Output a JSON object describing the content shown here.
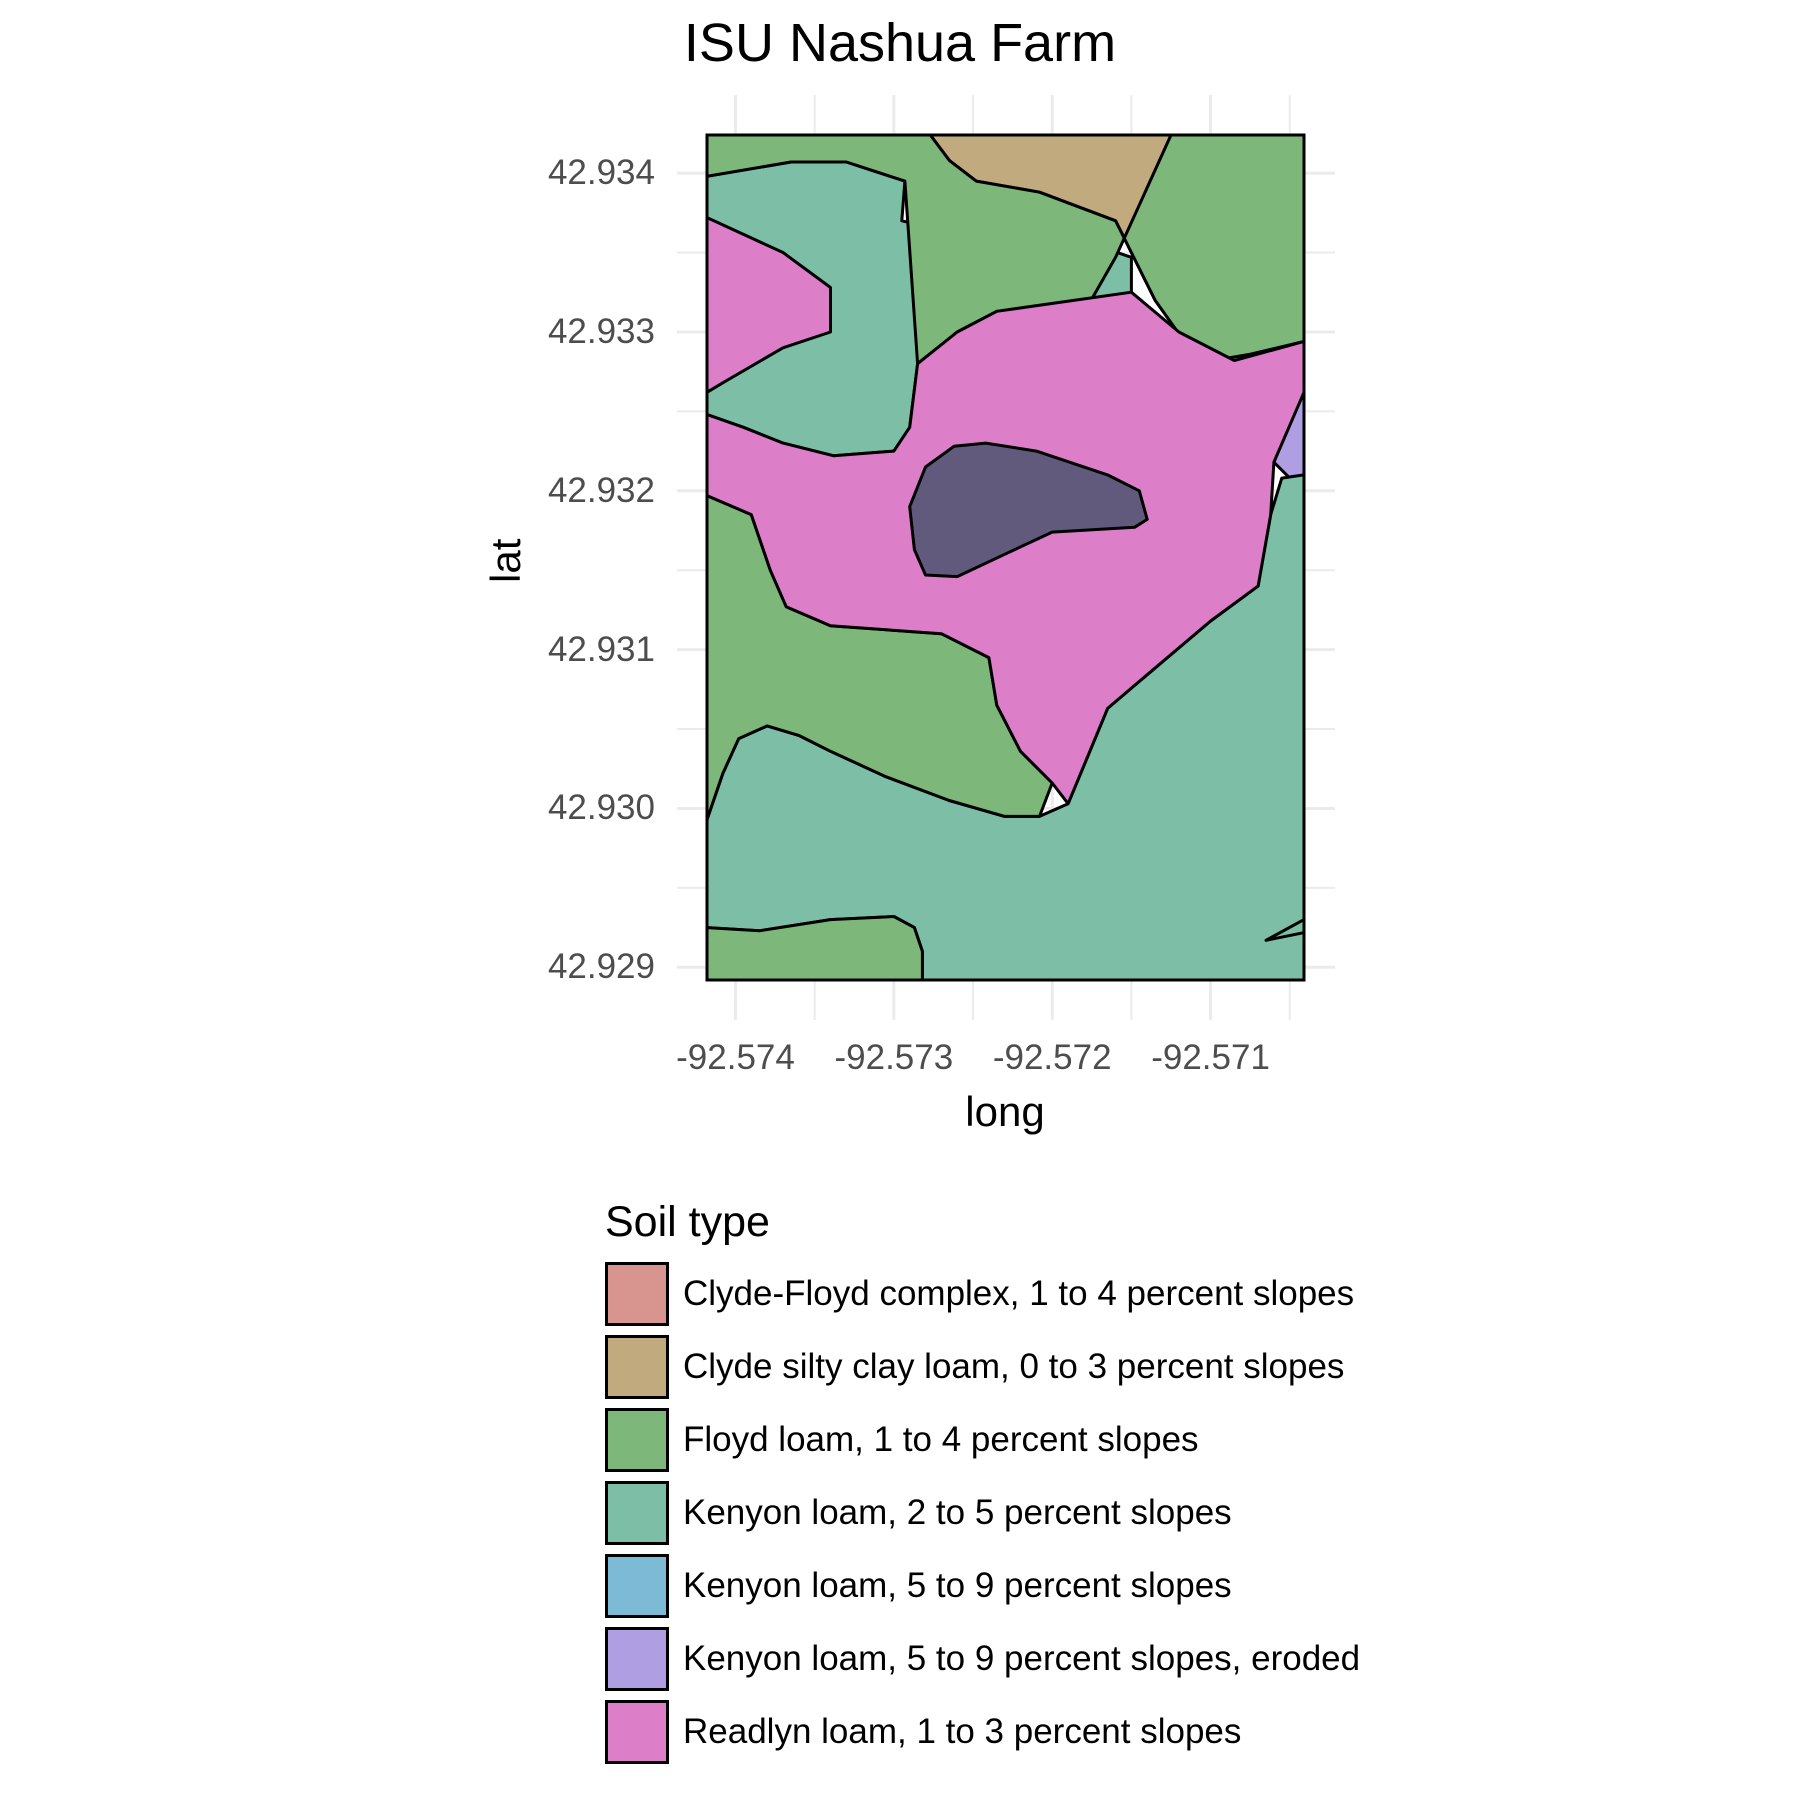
{
  "chart_data": {
    "type": "map",
    "title": "ISU Nashua Farm",
    "xlabel": "long",
    "ylabel": "lat",
    "xlim": [
      -92.57418,
      -92.57041
    ],
    "ylim": [
      42.92892,
      42.93424
    ],
    "x_ticks": [
      -92.574,
      -92.573,
      -92.572,
      -92.571
    ],
    "x_tick_labels": [
      "-92.574",
      "-92.573",
      "-92.572",
      "-92.571"
    ],
    "y_ticks": [
      42.929,
      42.93,
      42.931,
      42.932,
      42.933,
      42.934
    ],
    "y_tick_labels": [
      "42.929",
      "42.930",
      "42.931",
      "42.932",
      "42.933",
      "42.934"
    ],
    "grid": true,
    "legend_position": "bottom",
    "legend": {
      "title": "Soil type",
      "items": [
        {
          "label": "Clyde-Floyd complex, 1 to 4 percent slopes",
          "color": "#D8948E"
        },
        {
          "label": "Clyde silty clay loam, 0 to 3 percent slopes",
          "color": "#C0AA7E"
        },
        {
          "label": "Floyd loam, 1 to 4 percent slopes",
          "color": "#7DB87A"
        },
        {
          "label": "Kenyon loam, 2 to 5 percent slopes",
          "color": "#7CBFA6"
        },
        {
          "label": "Kenyon loam, 5 to 9 percent slopes",
          "color": "#7CBAD6"
        },
        {
          "label": "Kenyon loam, 5 to 9 percent slopes, eroded",
          "color": "#B09EE2"
        },
        {
          "label": "Readlyn loam, 1 to 3 percent slopes",
          "color": "#DC7EC8"
        }
      ]
    },
    "regions": [
      {
        "soil": "Clyde silty clay loam, 0 to 3 percent slopes",
        "color": "#C0AA7E",
        "coords": [
          [
            -92.57277,
            42.93424
          ],
          [
            -92.57125,
            42.93424
          ],
          [
            -92.57075,
            42.93408
          ],
          [
            -92.5705,
            42.93395
          ],
          [
            -92.5705,
            42.93347
          ],
          [
            -92.57041,
            42.9332
          ],
          [
            -92.57041,
            42.93294
          ],
          [
            -92.57075,
            42.93286
          ],
          [
            -92.57098,
            42.93282
          ],
          [
            -92.57115,
            42.93292
          ],
          [
            -92.57135,
            42.9332
          ],
          [
            -92.5716,
            42.9337
          ],
          [
            -92.57208,
            42.93388
          ],
          [
            -92.57248,
            42.93395
          ],
          [
            -92.57265,
            42.93408
          ]
        ]
      },
      {
        "soil": "Clyde silty clay loam, 0 to 3 percent slopes",
        "color": "#C0AA7E",
        "coords": [
          [
            -92.57418,
            42.93106
          ],
          [
            -92.57398,
            42.93098
          ],
          [
            -92.57376,
            42.93081
          ],
          [
            -92.57369,
            42.93066
          ],
          [
            -92.57376,
            42.93052
          ],
          [
            -92.57402,
            42.93044
          ],
          [
            -92.57418,
            42.93045
          ]
        ]
      },
      {
        "soil": "Clyde silty clay loam, 0 to 3 percent slopes",
        "color": "#C0AA7E",
        "coords": [
          [
            -92.57418,
            42.929
          ],
          [
            -92.57397,
            42.92892
          ],
          [
            -92.57383,
            42.92892
          ],
          [
            -92.574,
            42.92906
          ],
          [
            -92.57418,
            42.92912
          ]
        ]
      },
      {
        "soil": "Clyde-Floyd complex, 1 to 4 percent slopes",
        "color": "#D8948E",
        "coords": [
          [
            -92.57041,
            42.93375
          ],
          [
            -92.5705,
            42.9337
          ],
          [
            -92.57055,
            42.93355
          ],
          [
            -92.5705,
            42.9334
          ],
          [
            -92.57041,
            42.93332
          ]
        ]
      },
      {
        "soil": "Clyde-Floyd complex, 1 to 4 percent slopes",
        "color": "#D8948E",
        "coords": [
          [
            -92.57041,
            42.93128
          ],
          [
            -92.5705,
            42.93125
          ],
          [
            -92.57053,
            42.93117
          ],
          [
            -92.57047,
            42.93107
          ],
          [
            -92.57041,
            42.93103
          ]
        ]
      },
      {
        "soil": "Kenyon loam, 5 to 9 percent slopes, eroded",
        "color": "#B09EE2",
        "coords": [
          [
            -92.57041,
            42.93262
          ],
          [
            -92.5705,
            42.93243
          ],
          [
            -92.5706,
            42.93218
          ],
          [
            -92.5705,
            42.93208
          ],
          [
            -92.57041,
            42.93206
          ]
        ]
      },
      {
        "soil": "Kenyon loam, 2 to 5 percent slopes",
        "color": "#7CBFA6",
        "coords": [
          [
            -92.57418,
            42.93398
          ],
          [
            -92.57365,
            42.93407
          ],
          [
            -92.5733,
            42.93407
          ],
          [
            -92.57293,
            42.93395
          ],
          [
            -92.57295,
            42.9337
          ],
          [
            -92.5725,
            42.9336
          ],
          [
            -92.5718,
            42.93357
          ],
          [
            -92.5715,
            42.93347
          ],
          [
            -92.5715,
            42.93325
          ],
          [
            -92.5718,
            42.93312
          ],
          [
            -92.57235,
            42.93313
          ],
          [
            -92.5726,
            42.933
          ],
          [
            -92.57285,
            42.9328
          ],
          [
            -92.5729,
            42.9324
          ],
          [
            -92.573,
            42.93225
          ],
          [
            -92.57338,
            42.93222
          ],
          [
            -92.5737,
            42.9323
          ],
          [
            -92.57395,
            42.9324
          ],
          [
            -92.57418,
            42.93248
          ]
        ]
      },
      {
        "soil": "Kenyon loam, 2 to 5 percent slopes",
        "color": "#7CBFA6",
        "coords": [
          [
            -92.57418,
            42.92993
          ],
          [
            -92.57408,
            42.93022
          ],
          [
            -92.57398,
            42.93044
          ],
          [
            -92.5738,
            42.93052
          ],
          [
            -92.5736,
            42.93046
          ],
          [
            -92.5734,
            42.93036
          ],
          [
            -92.57305,
            42.9302
          ],
          [
            -92.57265,
            42.93005
          ],
          [
            -92.5723,
            42.92995
          ],
          [
            -92.57208,
            42.92995
          ],
          [
            -92.5719,
            42.93003
          ],
          [
            -92.57165,
            42.93063
          ],
          [
            -92.57145,
            42.9308
          ],
          [
            -92.571,
            42.93118
          ],
          [
            -92.5707,
            42.9314
          ],
          [
            -92.57062,
            42.93185
          ],
          [
            -92.57055,
            42.93208
          ],
          [
            -92.57041,
            42.9321
          ],
          [
            -92.57041,
            42.92912
          ],
          [
            -92.5704,
            42.92922
          ],
          [
            -92.57065,
            42.92917
          ],
          [
            -92.57041,
            42.9293
          ],
          [
            -92.57041,
            42.92892
          ],
          [
            -92.57282,
            42.92892
          ],
          [
            -92.57282,
            42.9291
          ],
          [
            -92.57287,
            42.92925
          ],
          [
            -92.573,
            42.92932
          ],
          [
            -92.5734,
            42.9293
          ],
          [
            -92.57385,
            42.92923
          ],
          [
            -92.57418,
            42.92925
          ]
        ]
      },
      {
        "soil": "Floyd loam, 1 to 4 percent slopes",
        "color": "#7DB87A",
        "coords": [
          [
            -92.57418,
            42.93424
          ],
          [
            -92.57277,
            42.93424
          ],
          [
            -92.57265,
            42.93408
          ],
          [
            -92.57248,
            42.93395
          ],
          [
            -92.57208,
            42.93388
          ],
          [
            -92.5716,
            42.9337
          ],
          [
            -92.57135,
            42.9332
          ],
          [
            -92.57115,
            42.93292
          ],
          [
            -92.57098,
            42.93282
          ],
          [
            -92.57075,
            42.93286
          ],
          [
            -92.57041,
            42.93294
          ],
          [
            -92.57041,
            42.93424
          ],
          [
            -92.57125,
            42.93424
          ],
          [
            -92.5716,
            42.93347
          ],
          [
            -92.5718,
            42.93312
          ],
          [
            -92.57235,
            42.93313
          ],
          [
            -92.5726,
            42.933
          ],
          [
            -92.57285,
            42.9328
          ],
          [
            -92.57293,
            42.93395
          ],
          [
            -92.5733,
            42.93407
          ],
          [
            -92.57365,
            42.93407
          ],
          [
            -92.57418,
            42.93398
          ]
        ]
      },
      {
        "soil": "Floyd loam, 1 to 4 percent slopes",
        "color": "#7DB87A",
        "coords": [
          [
            -92.57418,
            42.93197
          ],
          [
            -92.5739,
            42.93185
          ],
          [
            -92.57378,
            42.9315
          ],
          [
            -92.57368,
            42.93127
          ],
          [
            -92.5734,
            42.93115
          ],
          [
            -92.5727,
            42.9311
          ],
          [
            -92.5724,
            42.93095
          ],
          [
            -92.57235,
            42.93065
          ],
          [
            -92.5722,
            42.93036
          ],
          [
            -92.572,
            42.93016
          ],
          [
            -92.57208,
            42.92995
          ],
          [
            -92.5723,
            42.92995
          ],
          [
            -92.57265,
            42.93005
          ],
          [
            -92.57305,
            42.9302
          ],
          [
            -92.5734,
            42.93036
          ],
          [
            -92.5736,
            42.93046
          ],
          [
            -92.5738,
            42.93052
          ],
          [
            -92.57398,
            42.93044
          ],
          [
            -92.57408,
            42.93022
          ],
          [
            -92.57418,
            42.92993
          ]
        ]
      },
      {
        "soil": "Floyd loam, 1 to 4 percent slopes",
        "color": "#7DB87A",
        "coords": [
          [
            -92.57418,
            42.92925
          ],
          [
            -92.57385,
            42.92923
          ],
          [
            -92.5734,
            42.9293
          ],
          [
            -92.573,
            42.92932
          ],
          [
            -92.57287,
            42.92925
          ],
          [
            -92.57282,
            42.9291
          ],
          [
            -92.57282,
            42.92892
          ],
          [
            -92.57418,
            42.92892
          ]
        ]
      },
      {
        "soil": "Readlyn loam, 1 to 3 percent slopes",
        "color": "#DC7EC8",
        "coords": [
          [
            -92.57418,
            42.93372
          ],
          [
            -92.5737,
            42.9335
          ],
          [
            -92.5734,
            42.93328
          ],
          [
            -92.5734,
            42.933
          ],
          [
            -92.5737,
            42.9329
          ],
          [
            -92.57408,
            42.93268
          ],
          [
            -92.57418,
            42.93262
          ],
          [
            -92.57418,
            42.93248
          ],
          [
            -92.57395,
            42.9324
          ],
          [
            -92.5737,
            42.9323
          ],
          [
            -92.57338,
            42.93222
          ],
          [
            -92.573,
            42.93225
          ],
          [
            -92.5729,
            42.9324
          ],
          [
            -92.57285,
            42.9328
          ],
          [
            -92.5726,
            42.933
          ],
          [
            -92.57235,
            42.93313
          ],
          [
            -92.5715,
            42.93325
          ],
          [
            -92.5712,
            42.933
          ],
          [
            -92.57085,
            42.93282
          ],
          [
            -92.57041,
            42.93294
          ],
          [
            -92.57041,
            42.93262
          ],
          [
            -92.5706,
            42.93218
          ],
          [
            -92.57062,
            42.93185
          ],
          [
            -92.5707,
            42.9314
          ],
          [
            -92.571,
            42.93118
          ],
          [
            -92.57145,
            42.9308
          ],
          [
            -92.57165,
            42.93063
          ],
          [
            -92.5719,
            42.93003
          ],
          [
            -92.572,
            42.93016
          ],
          [
            -92.5722,
            42.93036
          ],
          [
            -92.57235,
            42.93065
          ],
          [
            -92.5724,
            42.93095
          ],
          [
            -92.5727,
            42.9311
          ],
          [
            -92.5734,
            42.93115
          ],
          [
            -92.57368,
            42.93127
          ],
          [
            -92.57378,
            42.9315
          ],
          [
            -92.5739,
            42.93185
          ],
          [
            -92.57418,
            42.93197
          ]
        ]
      },
      {
        "soil": "Readlyn loam, 1 to 3 percent slopes (darkened overlap)",
        "color": "#615A7C",
        "coords": [
          [
            -92.5729,
            42.9319
          ],
          [
            -92.5728,
            42.93215
          ],
          [
            -92.57262,
            42.93228
          ],
          [
            -92.57242,
            42.9323
          ],
          [
            -92.5721,
            42.93225
          ],
          [
            -92.57165,
            42.9321
          ],
          [
            -92.57145,
            42.932
          ],
          [
            -92.5714,
            42.93182
          ],
          [
            -92.57148,
            42.93177
          ],
          [
            -92.572,
            42.93174
          ],
          [
            -92.5723,
            42.9316
          ],
          [
            -92.5726,
            42.93146
          ],
          [
            -92.5728,
            42.93147
          ],
          [
            -92.57287,
            42.93163
          ]
        ]
      }
    ]
  }
}
